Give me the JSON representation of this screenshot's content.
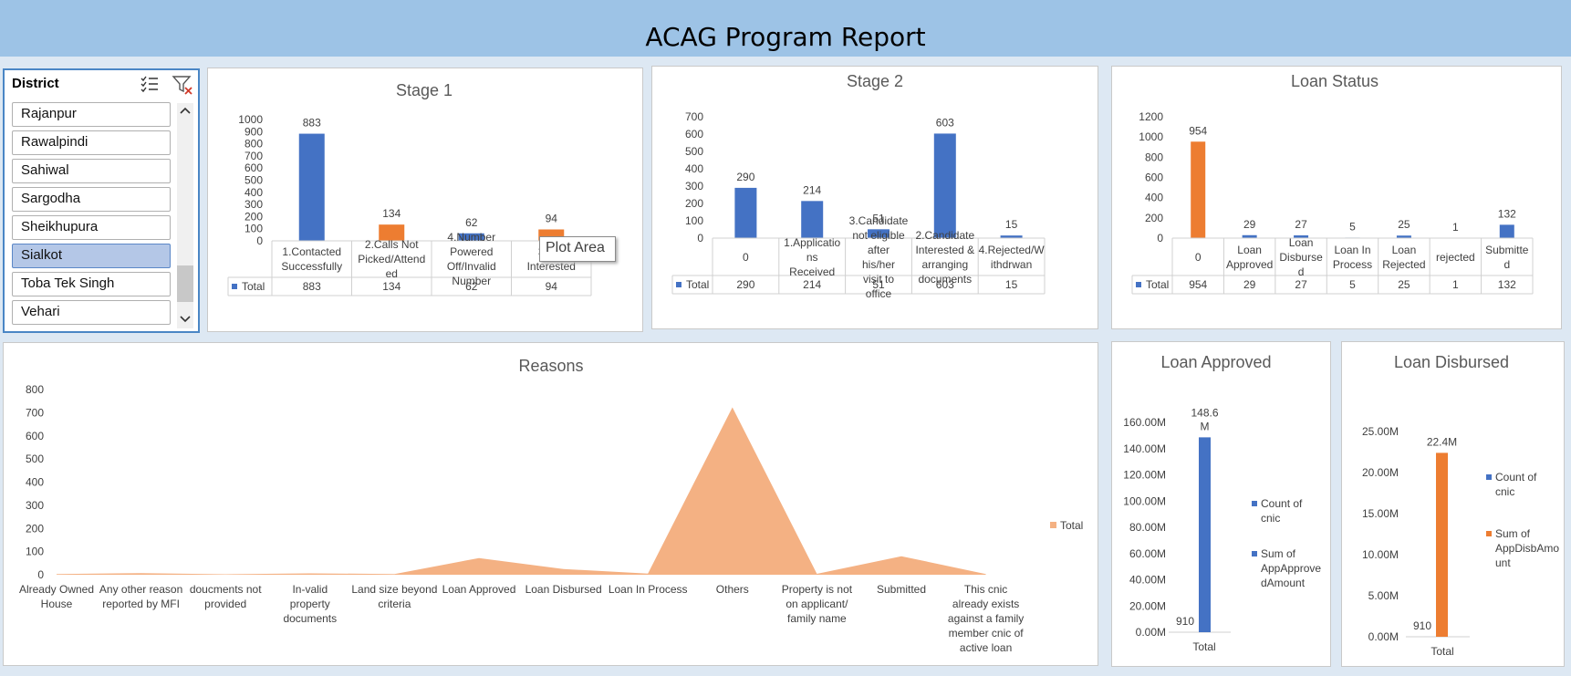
{
  "report_title": "ACAG Program Report",
  "slicer": {
    "header": "District",
    "items": [
      "Rajanpur",
      "Rawalpindi",
      "Sahiwal",
      "Sargodha",
      "Sheikhupura",
      "Sialkot",
      "Toba Tek Singh",
      "Vehari"
    ],
    "selected": "Sialkot"
  },
  "tooltip": "Plot Area",
  "colors": {
    "blue": "#4472c4",
    "orange": "#ed7d31",
    "light_orange": "#f4b183",
    "banner": "#9dc3e6"
  },
  "chart_data": [
    {
      "id": "stage1",
      "type": "bar",
      "title": "Stage 1",
      "categories": [
        "1.Contacted Successfully",
        "2.Calls Not Picked/Attended",
        "4.Number Powered Off/Invalid Number",
        "3.Not Interested"
      ],
      "series": [
        {
          "name": "Total",
          "values": [
            883,
            134,
            62,
            94
          ]
        }
      ],
      "bar_colors": [
        "blue",
        "orange",
        "blue",
        "orange"
      ],
      "ylim": [
        0,
        1000
      ],
      "yticks": [
        0,
        100,
        200,
        300,
        400,
        500,
        600,
        700,
        800,
        900,
        1000
      ],
      "data_table": true
    },
    {
      "id": "stage2",
      "type": "bar",
      "title": "Stage 2",
      "categories": [
        "0",
        "1.Applications Received",
        "3.Candidate not eligible after his/her visit to office",
        "2.Candidate Interested & arranging documents",
        "4.Rejected/Withdrwan"
      ],
      "series": [
        {
          "name": "Total",
          "values": [
            290,
            214,
            51,
            603,
            15
          ]
        }
      ],
      "bar_colors": [
        "blue",
        "blue",
        "blue",
        "blue",
        "blue"
      ],
      "ylim": [
        0,
        700
      ],
      "yticks": [
        0,
        100,
        200,
        300,
        400,
        500,
        600,
        700
      ],
      "data_table": true
    },
    {
      "id": "loanstatus",
      "type": "bar",
      "title": "Loan Status",
      "categories": [
        "0",
        "Loan Approved",
        "Loan Disbursed",
        "Loan In Process",
        "Loan Rejected",
        "rejected",
        "Submitted"
      ],
      "series": [
        {
          "name": "Total",
          "values": [
            954,
            29,
            27,
            5,
            25,
            1,
            132
          ]
        }
      ],
      "bar_colors": [
        "orange",
        "blue",
        "blue",
        "blue",
        "blue",
        "blue",
        "blue"
      ],
      "ylim": [
        0,
        1200
      ],
      "yticks": [
        0,
        200,
        400,
        600,
        800,
        1000,
        1200
      ],
      "data_table": true
    },
    {
      "id": "reasons",
      "type": "area",
      "title": "Reasons",
      "categories": [
        "Already Owned House",
        "Any other reason reported by MFI",
        "doucments not provided",
        "In-valid property documents",
        "Land size beyond criteria",
        "Loan Approved",
        "Loan Disbursed",
        "Loan In Process",
        "Others",
        "Property is not on applicant/ family name",
        "Submitted",
        "This cnic already exists against a family member cnic of active loan"
      ],
      "series": [
        {
          "name": "Total",
          "values": [
            3,
            7,
            2,
            6,
            3,
            72,
            25,
            5,
            723,
            4,
            80,
            3
          ]
        }
      ],
      "ylim": [
        0,
        800
      ],
      "yticks": [
        0,
        100,
        200,
        300,
        400,
        500,
        600,
        700,
        800
      ],
      "legend": "right"
    },
    {
      "id": "loanapproved",
      "type": "bar",
      "title": "Loan Approved",
      "categories": [
        "Total"
      ],
      "series": [
        {
          "name": "Count of cnic",
          "values": [
            910
          ],
          "label": "910"
        },
        {
          "name": "Sum of AppApprovedAmount",
          "values": [
            148600000
          ],
          "label": "148.6 M"
        }
      ],
      "ylim": [
        0,
        160000000
      ],
      "yticks": [
        "0.00M",
        "20.00M",
        "40.00M",
        "60.00M",
        "80.00M",
        "100.00M",
        "120.00M",
        "140.00M",
        "160.00M"
      ],
      "series_colors": [
        "blue",
        "blue"
      ],
      "legend": "right"
    },
    {
      "id": "loandisbursed",
      "type": "bar",
      "title": "Loan Disbursed",
      "categories": [
        "Total"
      ],
      "series": [
        {
          "name": "Count of cnic",
          "values": [
            910
          ],
          "label": "910"
        },
        {
          "name": "Sum of AppDisbAmount",
          "values": [
            22400000
          ],
          "label": "22.4M"
        }
      ],
      "ylim": [
        0,
        25000000
      ],
      "yticks": [
        "0.00M",
        "5.00M",
        "10.00M",
        "15.00M",
        "20.00M",
        "25.00M"
      ],
      "series_colors": [
        "blue",
        "orange"
      ],
      "legend": "right"
    }
  ]
}
